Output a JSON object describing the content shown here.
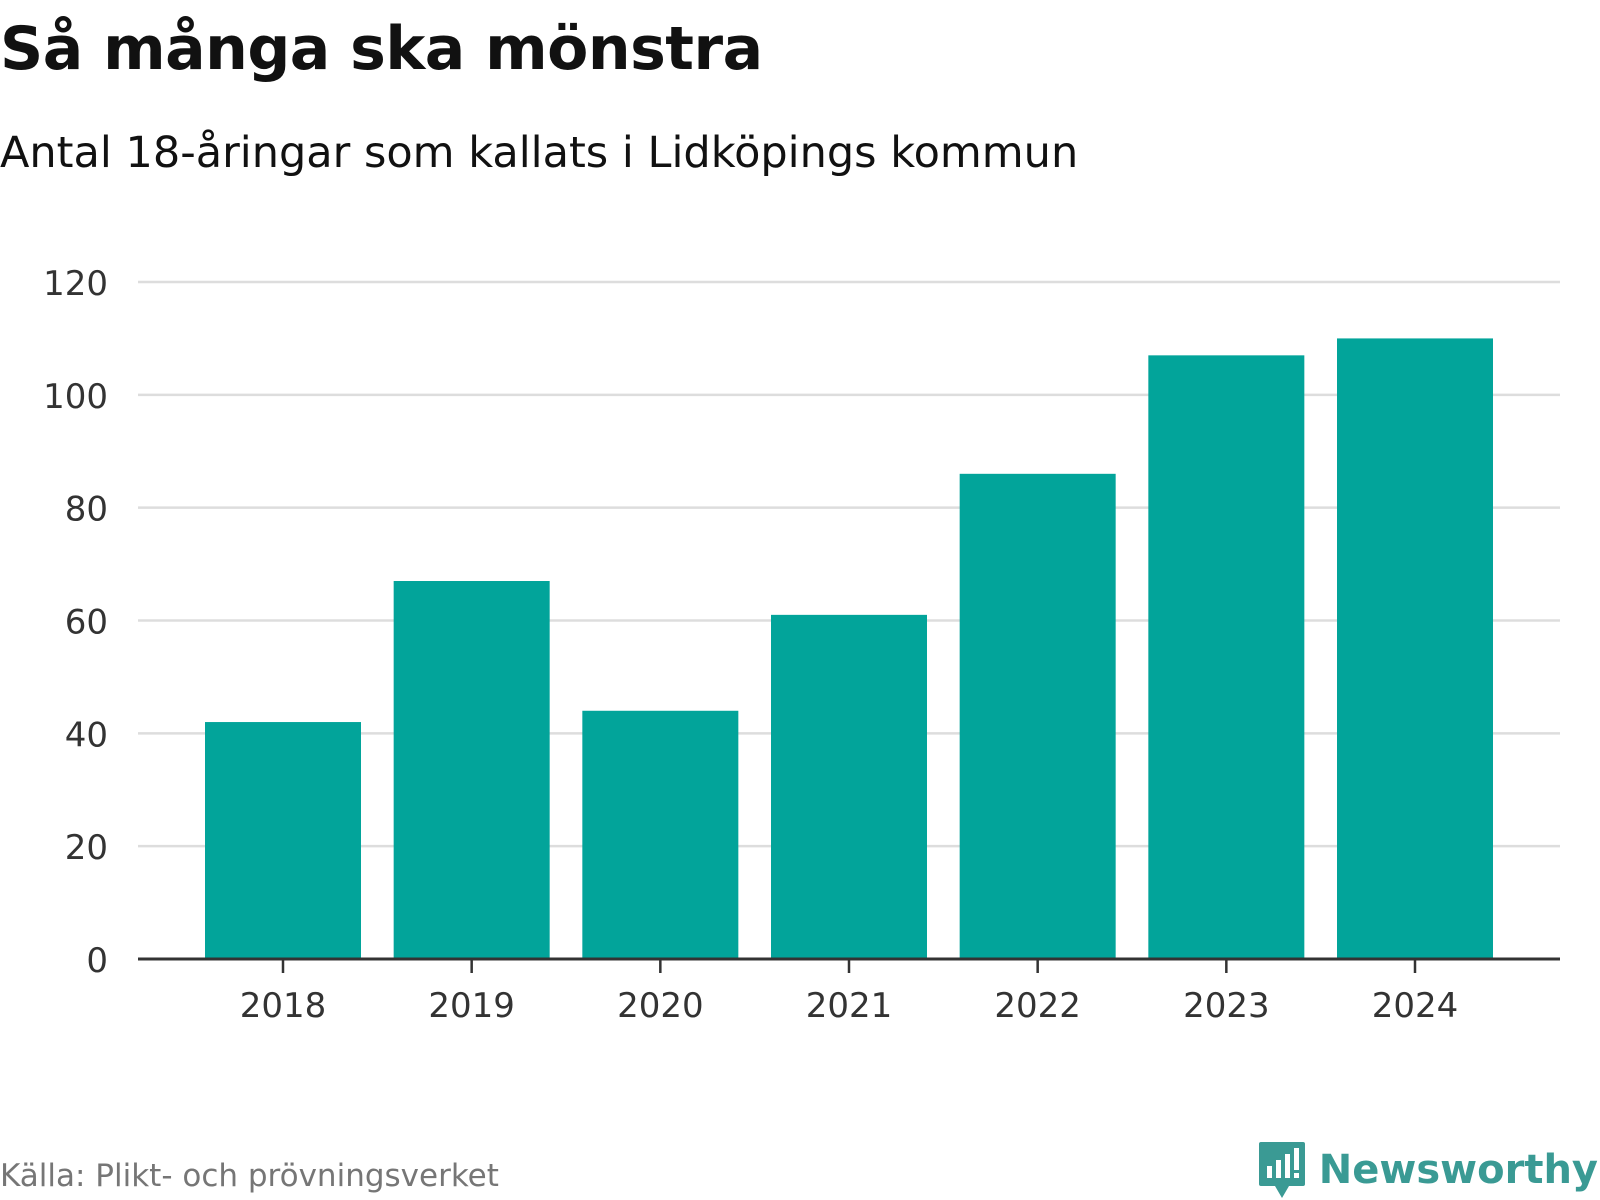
{
  "header": {
    "title": "Så många ska mönstra",
    "subtitle": "Antal 18-åringar som kallats i Lidköpings kommun"
  },
  "footer": {
    "source": "Källa: Plikt- och prövningsverket",
    "brand": "Newsworthy",
    "brand_icon": "newsworthy-bar-chart-logo-icon"
  },
  "colors": {
    "bar": "#02a49a",
    "grid": "#dddddd",
    "axis": "#333333",
    "brand": "#3a9a94"
  },
  "chart_data": {
    "type": "bar",
    "title": "Så många ska mönstra",
    "subtitle": "Antal 18-åringar som kallats i Lidköpings kommun",
    "xlabel": "",
    "ylabel": "",
    "categories": [
      "2018",
      "2019",
      "2020",
      "2021",
      "2022",
      "2023",
      "2024"
    ],
    "values": [
      42,
      67,
      44,
      61,
      86,
      107,
      110
    ],
    "ylim": [
      0,
      120
    ],
    "yticks": [
      0,
      20,
      40,
      60,
      80,
      100,
      120
    ],
    "grid": true,
    "legend": "none"
  }
}
